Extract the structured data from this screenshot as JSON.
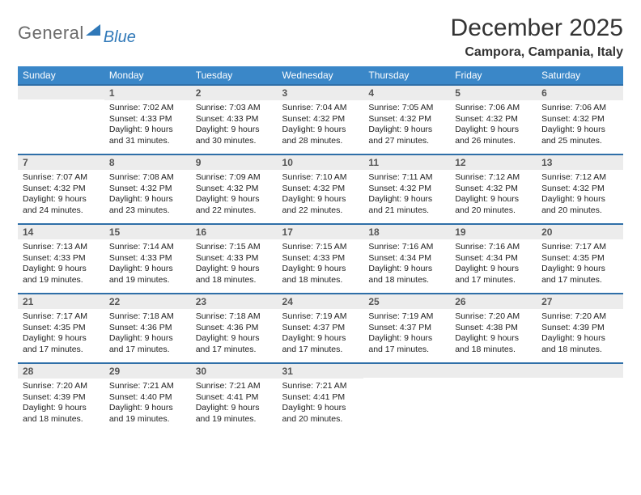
{
  "brand": {
    "name_gray": "General",
    "name_blue": "Blue"
  },
  "title": "December 2025",
  "location": "Campora, Campania, Italy",
  "colors": {
    "header_bg": "#3a87c8",
    "header_text": "#ffffff",
    "row_divider": "#2f6fa8",
    "daynum_bg": "#ececec",
    "daynum_text": "#555555",
    "body_text": "#222222",
    "title_text": "#333333",
    "logo_gray": "#6b6b6b",
    "logo_blue": "#2f78b8",
    "page_bg": "#ffffff"
  },
  "day_headers": [
    "Sunday",
    "Monday",
    "Tuesday",
    "Wednesday",
    "Thursday",
    "Friday",
    "Saturday"
  ],
  "weeks": [
    [
      {
        "n": "",
        "sr": "",
        "ss": "",
        "dl": ""
      },
      {
        "n": "1",
        "sr": "Sunrise: 7:02 AM",
        "ss": "Sunset: 4:33 PM",
        "dl": "Daylight: 9 hours and 31 minutes."
      },
      {
        "n": "2",
        "sr": "Sunrise: 7:03 AM",
        "ss": "Sunset: 4:33 PM",
        "dl": "Daylight: 9 hours and 30 minutes."
      },
      {
        "n": "3",
        "sr": "Sunrise: 7:04 AM",
        "ss": "Sunset: 4:32 PM",
        "dl": "Daylight: 9 hours and 28 minutes."
      },
      {
        "n": "4",
        "sr": "Sunrise: 7:05 AM",
        "ss": "Sunset: 4:32 PM",
        "dl": "Daylight: 9 hours and 27 minutes."
      },
      {
        "n": "5",
        "sr": "Sunrise: 7:06 AM",
        "ss": "Sunset: 4:32 PM",
        "dl": "Daylight: 9 hours and 26 minutes."
      },
      {
        "n": "6",
        "sr": "Sunrise: 7:06 AM",
        "ss": "Sunset: 4:32 PM",
        "dl": "Daylight: 9 hours and 25 minutes."
      }
    ],
    [
      {
        "n": "7",
        "sr": "Sunrise: 7:07 AM",
        "ss": "Sunset: 4:32 PM",
        "dl": "Daylight: 9 hours and 24 minutes."
      },
      {
        "n": "8",
        "sr": "Sunrise: 7:08 AM",
        "ss": "Sunset: 4:32 PM",
        "dl": "Daylight: 9 hours and 23 minutes."
      },
      {
        "n": "9",
        "sr": "Sunrise: 7:09 AM",
        "ss": "Sunset: 4:32 PM",
        "dl": "Daylight: 9 hours and 22 minutes."
      },
      {
        "n": "10",
        "sr": "Sunrise: 7:10 AM",
        "ss": "Sunset: 4:32 PM",
        "dl": "Daylight: 9 hours and 22 minutes."
      },
      {
        "n": "11",
        "sr": "Sunrise: 7:11 AM",
        "ss": "Sunset: 4:32 PM",
        "dl": "Daylight: 9 hours and 21 minutes."
      },
      {
        "n": "12",
        "sr": "Sunrise: 7:12 AM",
        "ss": "Sunset: 4:32 PM",
        "dl": "Daylight: 9 hours and 20 minutes."
      },
      {
        "n": "13",
        "sr": "Sunrise: 7:12 AM",
        "ss": "Sunset: 4:32 PM",
        "dl": "Daylight: 9 hours and 20 minutes."
      }
    ],
    [
      {
        "n": "14",
        "sr": "Sunrise: 7:13 AM",
        "ss": "Sunset: 4:33 PM",
        "dl": "Daylight: 9 hours and 19 minutes."
      },
      {
        "n": "15",
        "sr": "Sunrise: 7:14 AM",
        "ss": "Sunset: 4:33 PM",
        "dl": "Daylight: 9 hours and 19 minutes."
      },
      {
        "n": "16",
        "sr": "Sunrise: 7:15 AM",
        "ss": "Sunset: 4:33 PM",
        "dl": "Daylight: 9 hours and 18 minutes."
      },
      {
        "n": "17",
        "sr": "Sunrise: 7:15 AM",
        "ss": "Sunset: 4:33 PM",
        "dl": "Daylight: 9 hours and 18 minutes."
      },
      {
        "n": "18",
        "sr": "Sunrise: 7:16 AM",
        "ss": "Sunset: 4:34 PM",
        "dl": "Daylight: 9 hours and 18 minutes."
      },
      {
        "n": "19",
        "sr": "Sunrise: 7:16 AM",
        "ss": "Sunset: 4:34 PM",
        "dl": "Daylight: 9 hours and 17 minutes."
      },
      {
        "n": "20",
        "sr": "Sunrise: 7:17 AM",
        "ss": "Sunset: 4:35 PM",
        "dl": "Daylight: 9 hours and 17 minutes."
      }
    ],
    [
      {
        "n": "21",
        "sr": "Sunrise: 7:17 AM",
        "ss": "Sunset: 4:35 PM",
        "dl": "Daylight: 9 hours and 17 minutes."
      },
      {
        "n": "22",
        "sr": "Sunrise: 7:18 AM",
        "ss": "Sunset: 4:36 PM",
        "dl": "Daylight: 9 hours and 17 minutes."
      },
      {
        "n": "23",
        "sr": "Sunrise: 7:18 AM",
        "ss": "Sunset: 4:36 PM",
        "dl": "Daylight: 9 hours and 17 minutes."
      },
      {
        "n": "24",
        "sr": "Sunrise: 7:19 AM",
        "ss": "Sunset: 4:37 PM",
        "dl": "Daylight: 9 hours and 17 minutes."
      },
      {
        "n": "25",
        "sr": "Sunrise: 7:19 AM",
        "ss": "Sunset: 4:37 PM",
        "dl": "Daylight: 9 hours and 17 minutes."
      },
      {
        "n": "26",
        "sr": "Sunrise: 7:20 AM",
        "ss": "Sunset: 4:38 PM",
        "dl": "Daylight: 9 hours and 18 minutes."
      },
      {
        "n": "27",
        "sr": "Sunrise: 7:20 AM",
        "ss": "Sunset: 4:39 PM",
        "dl": "Daylight: 9 hours and 18 minutes."
      }
    ],
    [
      {
        "n": "28",
        "sr": "Sunrise: 7:20 AM",
        "ss": "Sunset: 4:39 PM",
        "dl": "Daylight: 9 hours and 18 minutes."
      },
      {
        "n": "29",
        "sr": "Sunrise: 7:21 AM",
        "ss": "Sunset: 4:40 PM",
        "dl": "Daylight: 9 hours and 19 minutes."
      },
      {
        "n": "30",
        "sr": "Sunrise: 7:21 AM",
        "ss": "Sunset: 4:41 PM",
        "dl": "Daylight: 9 hours and 19 minutes."
      },
      {
        "n": "31",
        "sr": "Sunrise: 7:21 AM",
        "ss": "Sunset: 4:41 PM",
        "dl": "Daylight: 9 hours and 20 minutes."
      },
      {
        "n": "",
        "sr": "",
        "ss": "",
        "dl": ""
      },
      {
        "n": "",
        "sr": "",
        "ss": "",
        "dl": ""
      },
      {
        "n": "",
        "sr": "",
        "ss": "",
        "dl": ""
      }
    ]
  ]
}
